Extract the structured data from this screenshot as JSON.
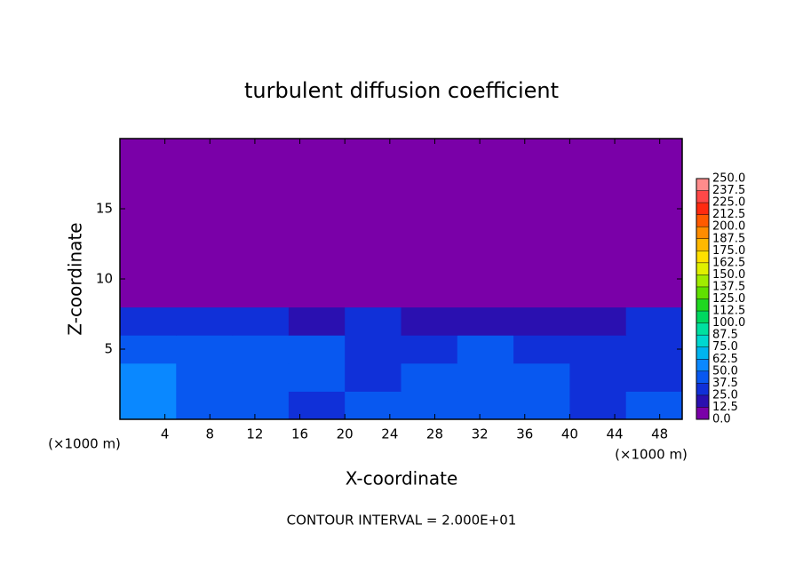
{
  "chart_data": {
    "type": "contour",
    "title": "turbulent diffusion coefficient",
    "x_label": "X-coordinate",
    "y_label": "Z-coordinate",
    "x_unit_left": "(×1000 m)",
    "x_unit_right": "(×1000 m)",
    "footer": "CONTOUR INTERVAL = 2.000E+01",
    "xlim": [
      0,
      50
    ],
    "ylim": [
      0,
      20
    ],
    "xticks": [
      4,
      8,
      12,
      16,
      20,
      24,
      28,
      32,
      36,
      40,
      44,
      48
    ],
    "yticks": [
      5,
      10,
      15
    ],
    "x_bins": [
      0,
      5,
      10,
      15,
      20,
      25,
      30,
      35,
      40,
      45,
      50
    ],
    "z_bins": [
      0,
      2,
      4,
      6,
      8,
      20
    ],
    "values": [
      [
        60,
        40,
        45,
        35,
        40,
        45,
        40,
        45,
        35,
        40
      ],
      [
        50,
        45,
        40,
        40,
        35,
        40,
        45,
        40,
        35,
        35
      ],
      [
        45,
        45,
        40,
        40,
        35,
        35,
        40,
        30,
        35,
        35
      ],
      [
        35,
        30,
        25,
        20,
        25,
        20,
        15,
        15,
        20,
        30
      ],
      [
        0,
        0,
        0,
        0,
        0,
        0,
        0,
        0,
        0,
        0
      ]
    ],
    "colorbar_ticks": [
      {
        "value": 0,
        "label": "0.0"
      },
      12.5,
      {
        "value": 25,
        "label": "25.0"
      },
      37.5,
      {
        "value": 50,
        "label": "50.0"
      },
      62.5,
      {
        "value": 75,
        "label": "75.0"
      },
      87.5,
      {
        "value": 100,
        "label": "100.0"
      },
      112.5,
      {
        "value": 125,
        "label": "125.0"
      },
      137.5,
      {
        "value": 150,
        "label": "150.0"
      },
      162.5,
      {
        "value": 175,
        "label": "175.0"
      },
      187.5,
      {
        "value": 200,
        "label": "200.0"
      },
      212.5,
      {
        "value": 225,
        "label": "225.0"
      },
      237.5,
      {
        "value": 250,
        "label": "250.0"
      }
    ],
    "colors": [
      "#7a00a8",
      "#2a10b0",
      "#1030d8",
      "#0858f0",
      "#0a88ff",
      "#00b4f0",
      "#00d8d0",
      "#00e0a0",
      "#00d860",
      "#20d820",
      "#60e000",
      "#a0ec00",
      "#e0f000",
      "#ffe000",
      "#ffb800",
      "#ff8c00",
      "#ff5a00",
      "#ff2a10",
      "#ff4848",
      "#ff8c8c"
    ]
  }
}
